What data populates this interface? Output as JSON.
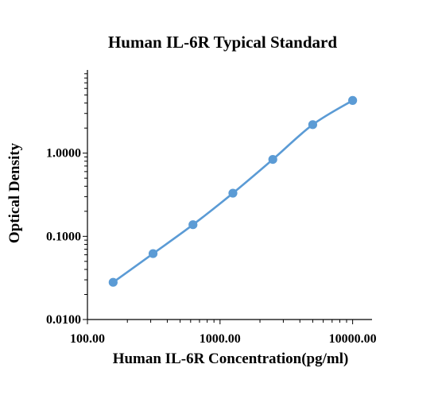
{
  "chart_data": {
    "type": "line",
    "title": "Human IL-6R Typical Standard",
    "xlabel": "Human IL-6R Concentration(pg/ml)",
    "ylabel": "Optical Density",
    "x_scale": "log",
    "y_scale": "log",
    "xlim": [
      100,
      14000
    ],
    "ylim": [
      0.01,
      10
    ],
    "x_ticks": [
      {
        "value": 100,
        "label": "100.00"
      },
      {
        "value": 1000,
        "label": "1000.00"
      },
      {
        "value": 10000,
        "label": "10000.00"
      }
    ],
    "y_ticks": [
      {
        "value": 0.01,
        "label": "0.0100"
      },
      {
        "value": 0.1,
        "label": "0.1000"
      },
      {
        "value": 1,
        "label": "1.0000"
      }
    ],
    "grid": false,
    "legend": "none",
    "series": [
      {
        "x": [
          156.25,
          312.5,
          625,
          1250,
          2500,
          5000,
          10000
        ],
        "y": [
          0.028,
          0.062,
          0.138,
          0.33,
          0.84,
          2.2,
          4.3
        ],
        "color": "#5b9bd5",
        "smooth": true,
        "markers": true
      }
    ]
  }
}
